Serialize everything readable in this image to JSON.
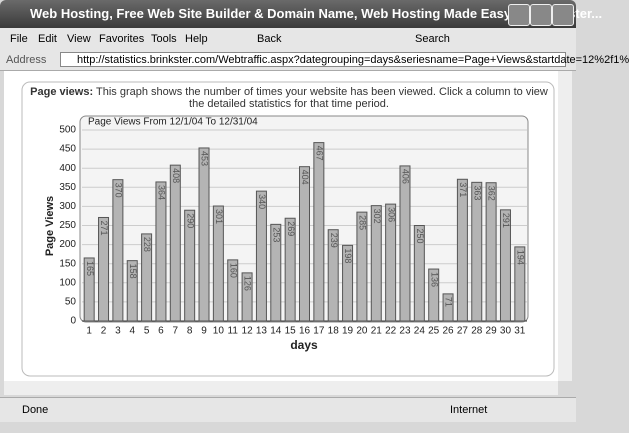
{
  "window": {
    "title": "Web Hosting, Free Web Site Builder & Domain Name, Web Hosting Made Easy By Brinkster..."
  },
  "menu": [
    "File",
    "Edit",
    "View",
    "Favorites",
    "Tools",
    "Help"
  ],
  "toolbar": {
    "back": "Back",
    "search": "Search"
  },
  "address": {
    "label": "Address",
    "url": "http://statistics.brinkster.com/Webtraffic.aspx?dategrouping=days&seriesname=Page+Views&startdate=12%2f1%"
  },
  "description": {
    "heading": "Page views:",
    "text": "This graph shows the number of times your website has been viewed.  Click a column to view the detailed statistics for that time period."
  },
  "chart_data": {
    "type": "bar",
    "title": "Page Views From 12/1/04 To 12/31/04",
    "x_label": "days",
    "y_label": "Page Views",
    "categories": [
      "1",
      "2",
      "3",
      "4",
      "5",
      "6",
      "7",
      "8",
      "9",
      "10",
      "11",
      "12",
      "13",
      "14",
      "15",
      "16",
      "17",
      "18",
      "19",
      "20",
      "21",
      "22",
      "23",
      "24",
      "25",
      "26",
      "27",
      "28",
      "29",
      "30",
      "31"
    ],
    "values": [
      165,
      271,
      370,
      158,
      228,
      364,
      408,
      290,
      453,
      301,
      160,
      126,
      340,
      253,
      269,
      404,
      467,
      239,
      198,
      285,
      302,
      306,
      406,
      250,
      136,
      71,
      371,
      363,
      362,
      291,
      194
    ],
    "color": "#b4b4b4",
    "ylim": [
      0,
      500
    ],
    "yticks": [
      0,
      50,
      100,
      150,
      200,
      250,
      300,
      350,
      400,
      450,
      500
    ],
    "grid": true
  },
  "status": {
    "left": "Done",
    "zone": "Internet"
  }
}
